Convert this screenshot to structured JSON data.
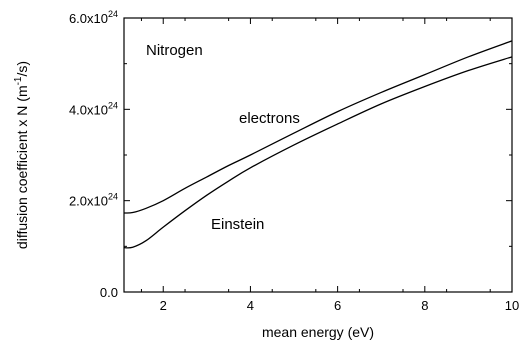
{
  "chart_data": {
    "type": "line",
    "xlabel": "mean energy (eV)",
    "ylabel": "diffusion coefficient x N (m",
    "ylabel_sup": "-1",
    "ylabel_end": "/s)",
    "xlim": [
      1.1,
      10
    ],
    "ylim": [
      0,
      6e+24
    ],
    "x_ticks": [
      2,
      4,
      6,
      8,
      10
    ],
    "x_tick_labels": [
      "2",
      "4",
      "6",
      "8",
      "10"
    ],
    "y_ticks": [
      0,
      2e+24,
      4e+24,
      6e+24
    ],
    "y_tick_labels": [
      {
        "base": "0.0",
        "exp": ""
      },
      {
        "base": "2.0x10",
        "exp": "24"
      },
      {
        "base": "4.0x10",
        "exp": "24"
      },
      {
        "base": "6.0x10",
        "exp": "24"
      }
    ],
    "grid": false,
    "annotations": {
      "gas": "Nitrogen",
      "upper_curve": "electrons",
      "lower_curve": "Einstein"
    },
    "series": [
      {
        "id": "electrons",
        "x": [
          1.1,
          1.3,
          1.6,
          2,
          2.5,
          3,
          3.5,
          4,
          5,
          6,
          7,
          8,
          9,
          10
        ],
        "y": [
          1.73e+24,
          1.74e+24,
          1.83e+24,
          2e+24,
          2.27e+24,
          2.52e+24,
          2.77e+24,
          3e+24,
          3.48e+24,
          3.95e+24,
          4.37e+24,
          4.76e+24,
          5.15e+24,
          5.5e+24
        ]
      },
      {
        "id": "einstein",
        "x": [
          1.1,
          1.3,
          1.6,
          2,
          2.5,
          3,
          3.5,
          4,
          5,
          6,
          7,
          8,
          9,
          10
        ],
        "y": [
          9.7e+23,
          9.8e+23,
          1.12e+24,
          1.42e+24,
          1.78e+24,
          2.12e+24,
          2.43e+24,
          2.72e+24,
          3.22e+24,
          3.68e+24,
          4.12e+24,
          4.5e+24,
          4.85e+24,
          5.15e+24
        ]
      }
    ]
  }
}
